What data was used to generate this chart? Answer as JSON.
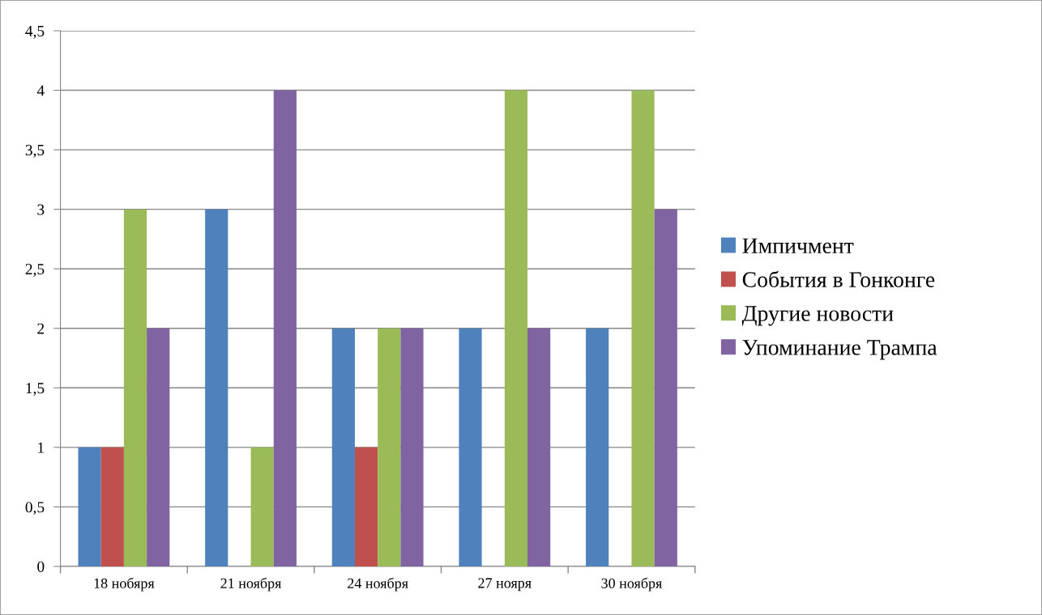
{
  "chart_data": {
    "type": "bar",
    "categories": [
      "18 нобяря",
      "21 ноября",
      "24 ноября",
      "27 нояря",
      "30 ноября"
    ],
    "series": [
      {
        "name": "Импичмент",
        "color": "#4f81bd",
        "values": [
          1,
          3,
          2,
          2,
          2
        ]
      },
      {
        "name": "События в Гонконге",
        "color": "#c0504d",
        "values": [
          1,
          0,
          1,
          0,
          0
        ]
      },
      {
        "name": "Другие новости",
        "color": "#9bbb59",
        "values": [
          3,
          1,
          2,
          4,
          4
        ]
      },
      {
        "name": "Упоминание Трампа",
        "color": "#8064a2",
        "values": [
          2,
          4,
          2,
          2,
          3
        ]
      }
    ],
    "ylim": [
      0,
      4.5
    ],
    "yticks": [
      0,
      {
        "value": 0.5,
        "label": "0,5"
      },
      1,
      {
        "value": 1.5,
        "label": "1,5"
      },
      2,
      {
        "value": 2.5,
        "label": "2,5"
      },
      3,
      {
        "value": 3.5,
        "label": "3,5"
      },
      4,
      {
        "value": 4.5,
        "label": "4,5"
      }
    ],
    "grid": "y",
    "legend": "right"
  }
}
